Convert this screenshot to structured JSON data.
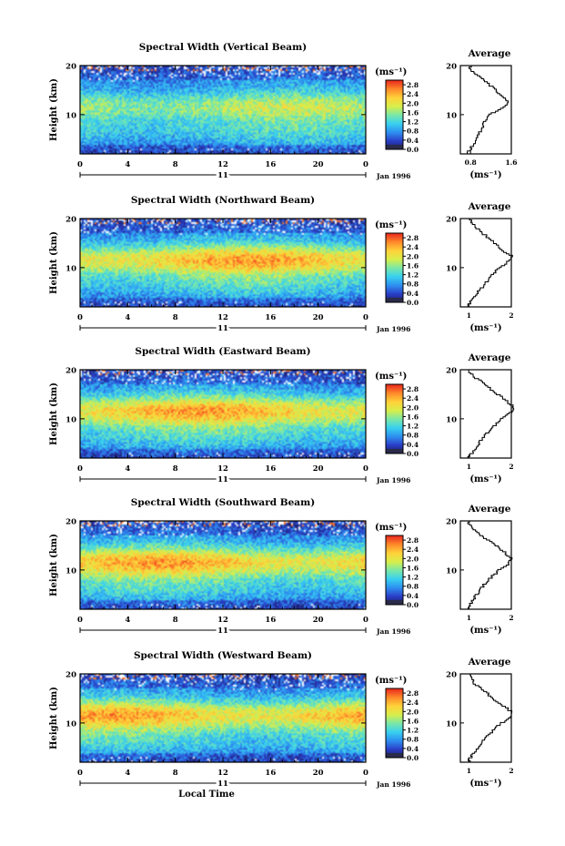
{
  "figure": {
    "xlabel": "Local Time"
  },
  "panels": [
    {
      "title": "Spectral Width (Vertical Beam)",
      "side_title": "Average",
      "ylabel": "Height (km)",
      "units": "(ms⁻¹)",
      "date_label": "Jan 1996",
      "day_label": "11",
      "avg_xticks": [
        "0.8",
        "1.6"
      ],
      "avg_xlim": [
        0.6,
        1.6
      ],
      "avg_xlabel": "(ms⁻¹)"
    },
    {
      "title": "Spectral Width (Northward Beam)",
      "side_title": "Average",
      "ylabel": "Height (km)",
      "units": "(ms⁻¹)",
      "date_label": "Jan 1996",
      "day_label": "11",
      "avg_xticks": [
        "1",
        "2"
      ],
      "avg_xlim": [
        0.8,
        2.0
      ],
      "avg_xlabel": "(ms⁻¹)"
    },
    {
      "title": "Spectral Width (Eastward Beam)",
      "side_title": "Average",
      "ylabel": "Height (km)",
      "units": "(ms⁻¹)",
      "date_label": "Jan 1996",
      "day_label": "11",
      "avg_xticks": [
        "1",
        "2"
      ],
      "avg_xlim": [
        0.8,
        2.0
      ],
      "avg_xlabel": "(ms⁻¹)"
    },
    {
      "title": "Spectral Width (Southward Beam)",
      "side_title": "Average",
      "ylabel": "Height (km)",
      "units": "(ms⁻¹)",
      "date_label": "Jan 1996",
      "day_label": "11",
      "avg_xticks": [
        "1",
        "2"
      ],
      "avg_xlim": [
        0.8,
        2.0
      ],
      "avg_xlabel": "(ms⁻¹)"
    },
    {
      "title": "Spectral Width (Westward Beam)",
      "side_title": "Average",
      "ylabel": "Height (km)",
      "units": "(ms⁻¹)",
      "date_label": "Jan 1996",
      "day_label": "11",
      "avg_xticks": [
        "1",
        "2"
      ],
      "avg_xlim": [
        0.8,
        2.0
      ],
      "avg_xlabel": "(ms⁻¹)"
    }
  ],
  "chart_data": {
    "type": "heatmap",
    "x_ticks": [
      "0",
      "4",
      "8",
      "12",
      "16",
      "20",
      "0"
    ],
    "xlim": [
      0,
      24
    ],
    "y_ticks": [
      "10",
      "20"
    ],
    "ylim": [
      2,
      20
    ],
    "colorbar_ticks": [
      "0.0",
      "0.4",
      "0.8",
      "1.2",
      "1.6",
      "2.0",
      "2.4",
      "2.8"
    ],
    "colorbar_range": [
      0.0,
      3.0
    ],
    "colorbar_colors": [
      "#1a1a5a",
      "#2a3ec8",
      "#2e8ff0",
      "#38d0f0",
      "#7ae8a8",
      "#d8ee4a",
      "#ffd23a",
      "#ff8a2a",
      "#e8281e"
    ],
    "series_profiles": [
      {
        "name": "Vertical Beam",
        "heights": [
          2.5,
          4,
          6,
          8,
          10,
          11.5,
          12.5,
          14,
          16,
          18,
          19.5
        ],
        "values": [
          0.75,
          0.85,
          0.95,
          1.05,
          1.15,
          1.45,
          1.55,
          1.4,
          1.2,
          0.95,
          0.8
        ]
      },
      {
        "name": "Northward Beam",
        "heights": [
          2.5,
          4,
          6,
          8,
          10,
          11.5,
          12.5,
          14,
          16,
          18,
          19.5
        ],
        "values": [
          1.0,
          1.1,
          1.3,
          1.5,
          1.7,
          1.95,
          2.0,
          1.75,
          1.5,
          1.2,
          1.05
        ]
      },
      {
        "name": "Eastward Beam",
        "heights": [
          2.5,
          4,
          6,
          8,
          10,
          11.5,
          12.5,
          14,
          16,
          18,
          19.5
        ],
        "values": [
          1.0,
          1.15,
          1.3,
          1.5,
          1.75,
          2.0,
          2.05,
          1.85,
          1.55,
          1.25,
          1.0
        ]
      },
      {
        "name": "Southward Beam",
        "heights": [
          2.5,
          4,
          6,
          8,
          10,
          11.5,
          12.5,
          14,
          16,
          18,
          19.5
        ],
        "values": [
          1.0,
          1.1,
          1.25,
          1.45,
          1.7,
          1.95,
          2.0,
          1.8,
          1.5,
          1.15,
          1.0
        ]
      },
      {
        "name": "Westward Beam",
        "heights": [
          2.5,
          4,
          6,
          8,
          10,
          11.5,
          12.5,
          14,
          16,
          18,
          19.5
        ],
        "values": [
          1.0,
          1.1,
          1.3,
          1.5,
          1.75,
          2.0,
          2.0,
          1.75,
          1.45,
          1.15,
          1.05
        ]
      }
    ]
  }
}
